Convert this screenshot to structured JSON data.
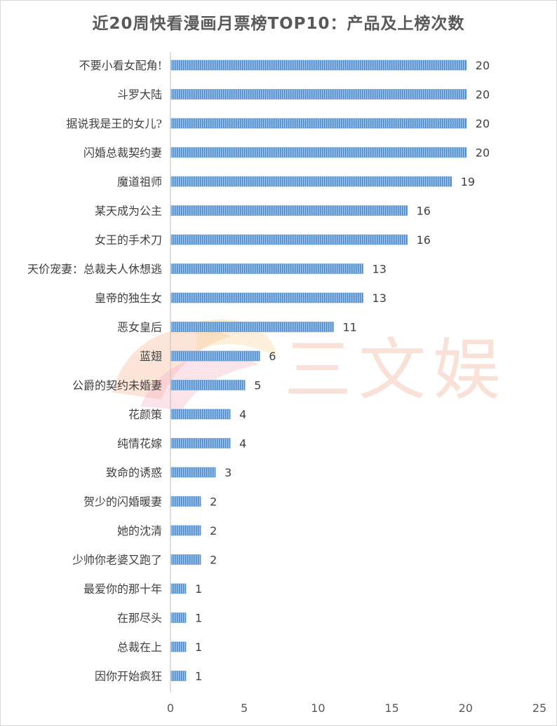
{
  "chart_data": {
    "type": "bar",
    "orientation": "horizontal",
    "title": "近20周快看漫画月票榜TOP10：产品及上榜次数",
    "categories": [
      "不要小看女配角!",
      "斗罗大陆",
      "据说我是王的女儿?",
      "闪婚总裁契约妻",
      "魔道祖师",
      "某天成为公主",
      "女王的手术刀",
      "天价宠妻：总裁夫人休想逃",
      "皇帝的独生女",
      "恶女皇后",
      "蓝翅",
      "公爵的契约未婚妻",
      "花颜策",
      "纯情花嫁",
      "致命的诱惑",
      "贺少的闪婚暖妻",
      "她的沈清",
      "少帅你老婆又跑了",
      "最爱你的那十年",
      "在那尽头",
      "总裁在上",
      "因你开始疯狂"
    ],
    "values": [
      20,
      20,
      20,
      20,
      19,
      16,
      16,
      13,
      13,
      11,
      6,
      5,
      4,
      4,
      3,
      2,
      2,
      2,
      1,
      1,
      1,
      1
    ],
    "xlim": [
      0,
      25
    ],
    "xticks": [
      "0",
      "5",
      "10",
      "15",
      "20",
      "25"
    ],
    "grid": false,
    "legend": "none",
    "bar_color": "#5b9bd5"
  },
  "watermark": {
    "text": "三文娱",
    "color": "#f4a582"
  }
}
